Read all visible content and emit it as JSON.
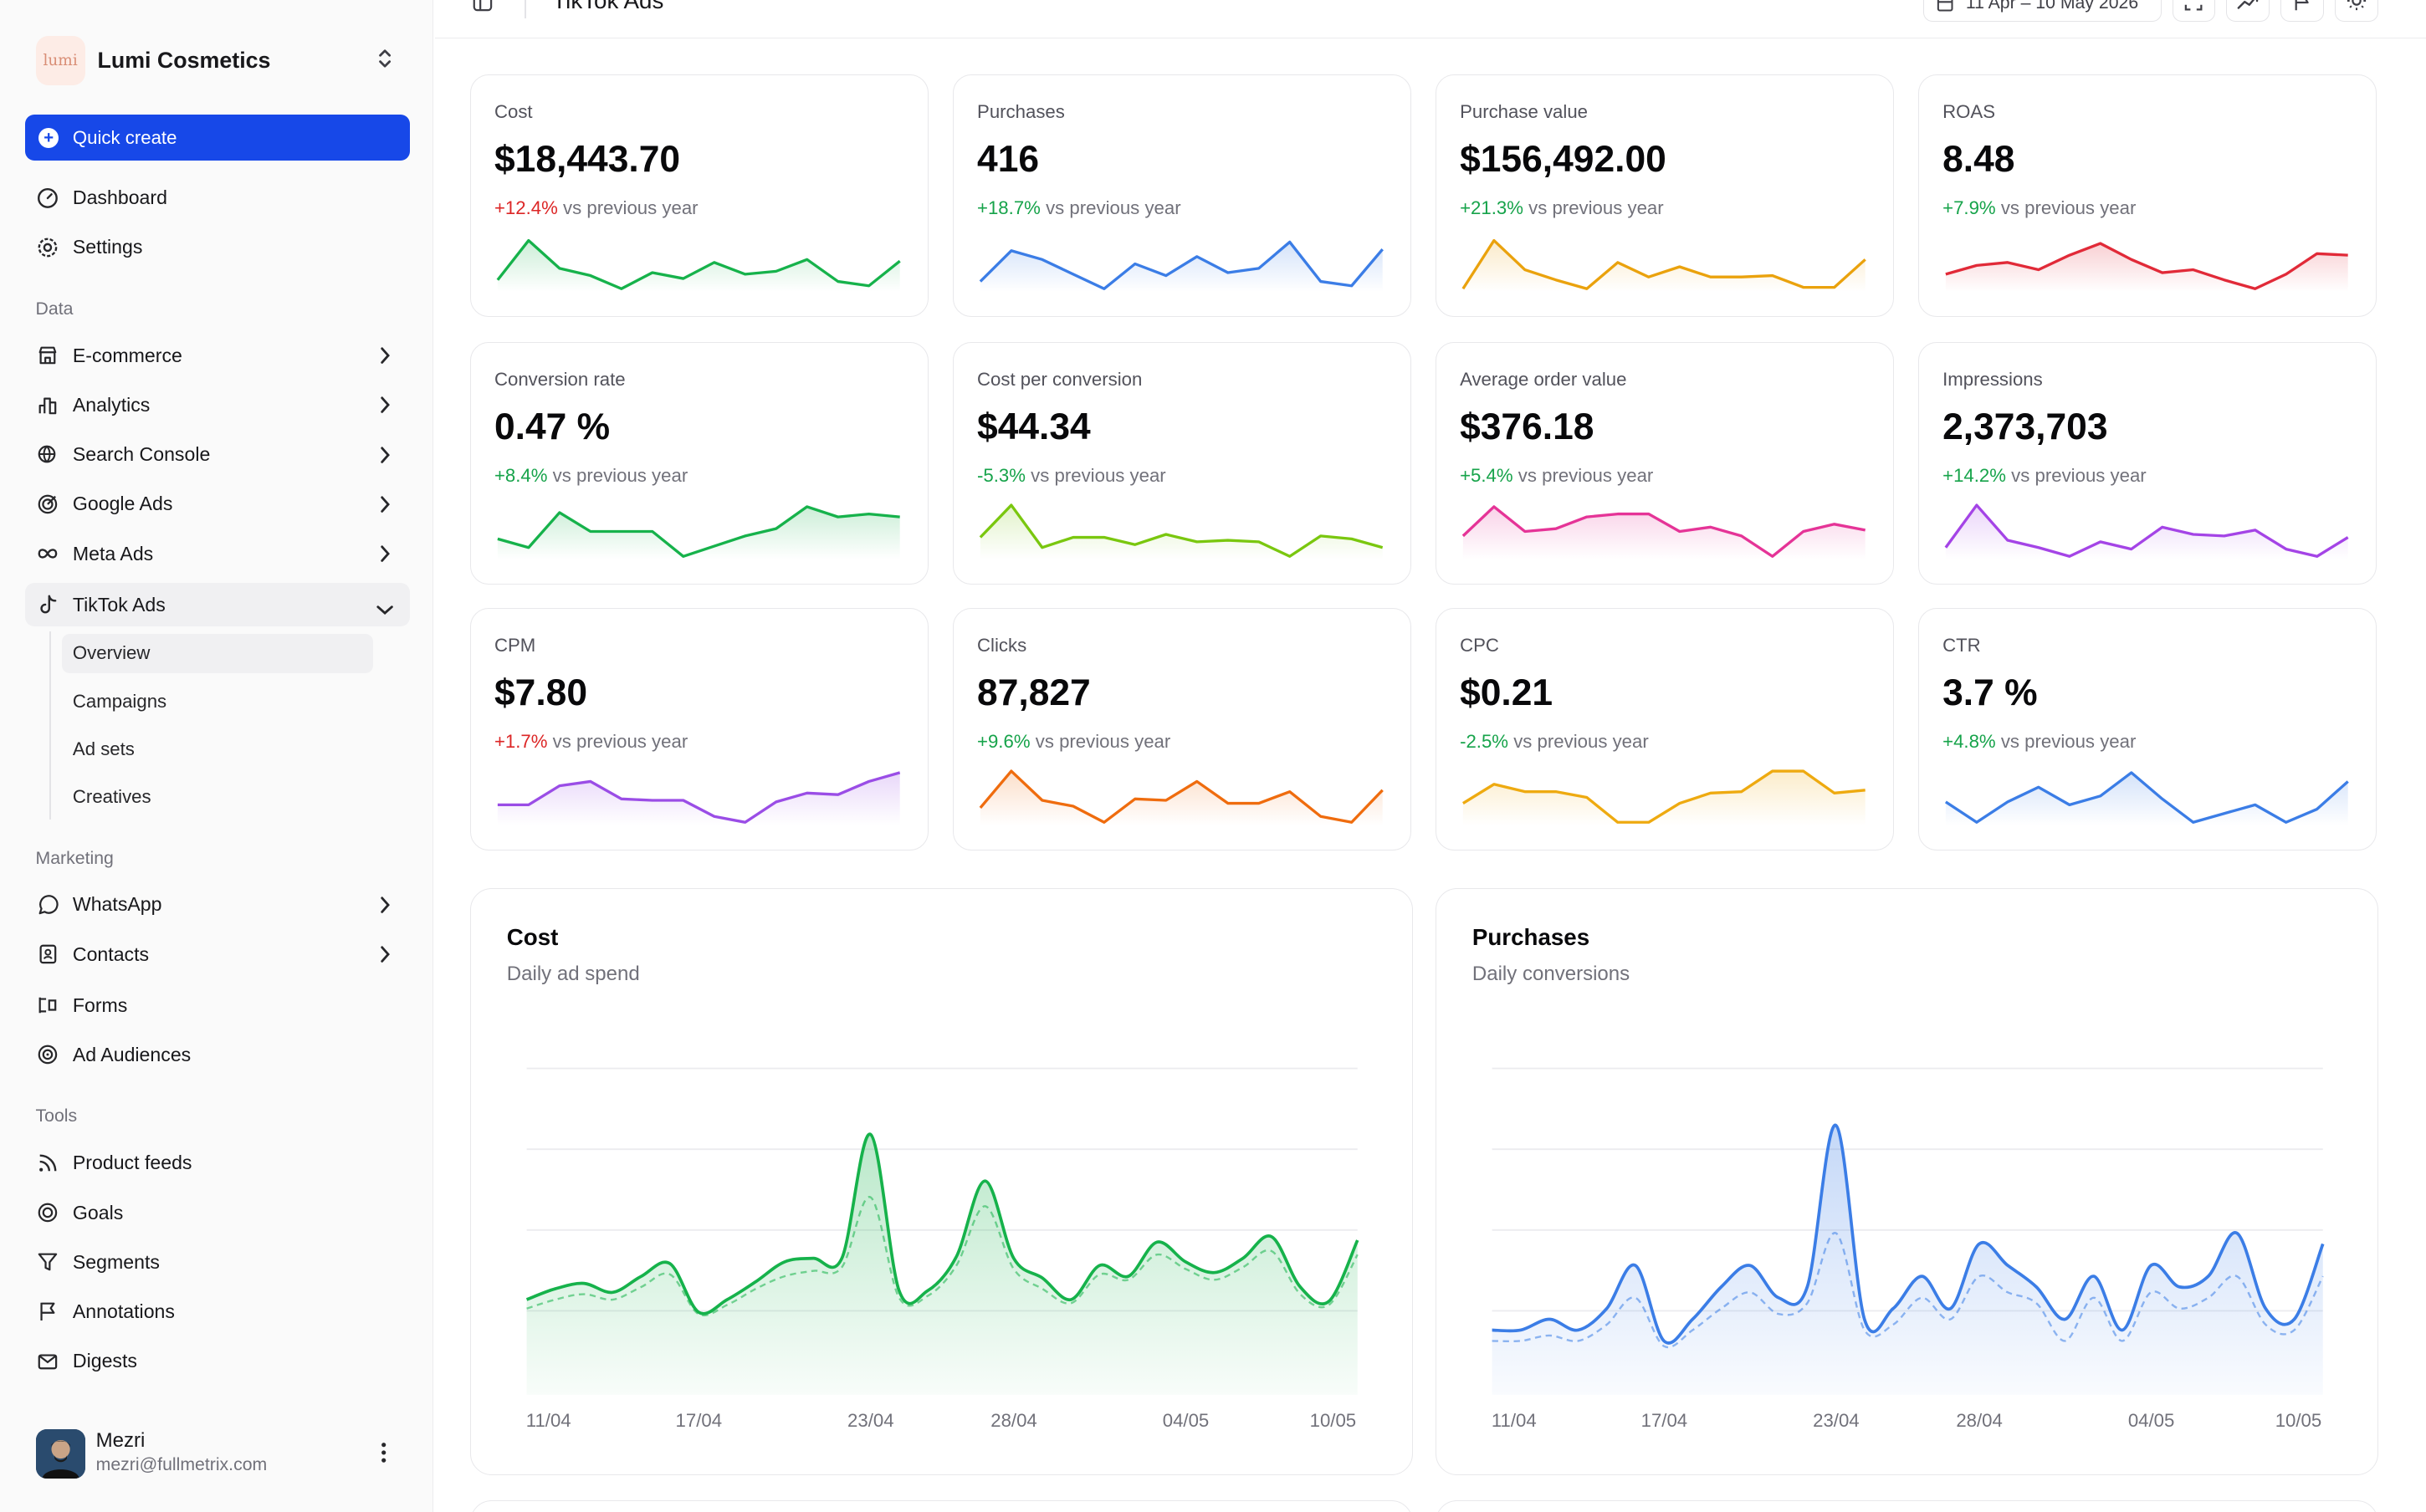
{
  "workspace": {
    "name": "Lumi Cosmetics",
    "logo_text": "lumi"
  },
  "quick_create_label": "Quick create",
  "nav_top": [
    {
      "label": "Dashboard",
      "icon": "dashboard-icon"
    },
    {
      "label": "Settings",
      "icon": "gear-icon"
    }
  ],
  "sections": {
    "data": "Data",
    "marketing": "Marketing",
    "tools": "Tools"
  },
  "nav_data": [
    {
      "label": "E-commerce",
      "icon": "store-icon"
    },
    {
      "label": "Analytics",
      "icon": "bar-chart-icon"
    },
    {
      "label": "Search Console",
      "icon": "globe-search-icon"
    },
    {
      "label": "Google Ads",
      "icon": "target-icon"
    },
    {
      "label": "Meta Ads",
      "icon": "infinity-icon"
    },
    {
      "label": "TikTok Ads",
      "icon": "tiktok-icon"
    }
  ],
  "tiktok_sub": [
    "Overview",
    "Campaigns",
    "Ad sets",
    "Creatives"
  ],
  "nav_marketing": [
    {
      "label": "WhatsApp",
      "icon": "whatsapp-icon"
    },
    {
      "label": "Contacts",
      "icon": "contacts-icon"
    },
    {
      "label": "Forms",
      "icon": "form-icon"
    },
    {
      "label": "Ad Audiences",
      "icon": "audience-target-icon"
    }
  ],
  "nav_tools": [
    {
      "label": "Product feeds",
      "icon": "rss-icon"
    },
    {
      "label": "Goals",
      "icon": "goal-icon"
    },
    {
      "label": "Segments",
      "icon": "funnel-icon"
    },
    {
      "label": "Annotations",
      "icon": "flag-icon"
    },
    {
      "label": "Digests",
      "icon": "mail-icon"
    }
  ],
  "user": {
    "name": "Mezri",
    "email": "mezri@fullmetrix.com"
  },
  "header": {
    "title": "TikTok Ads",
    "date_range": "11 Apr – 10 May 2026"
  },
  "delta_suffix": "vs previous year",
  "kpis": [
    {
      "label": "Cost",
      "value": "$18,443.70",
      "delta": "+12.4%",
      "trend": "neg",
      "color": "#16b24b",
      "points": [
        6,
        33,
        14,
        9,
        0,
        11,
        7,
        18,
        10,
        12,
        20,
        5,
        2,
        19
      ]
    },
    {
      "label": "Purchases",
      "value": "416",
      "delta": "+18.7%",
      "trend": "pos",
      "color": "#3b7de6",
      "points": [
        5,
        26,
        20,
        10,
        0,
        17,
        9,
        22,
        11,
        14,
        32,
        5,
        2,
        27
      ]
    },
    {
      "label": "Purchase value",
      "value": "$156,492.00",
      "delta": "+21.3%",
      "trend": "pos",
      "color": "#eaa20d",
      "points": [
        0,
        33,
        13,
        6,
        0,
        18,
        8,
        15,
        8,
        8,
        9,
        1,
        1,
        20
      ]
    },
    {
      "label": "ROAS",
      "value": "8.48",
      "delta": "+7.9%",
      "trend": "pos",
      "color": "#e12a38",
      "points": [
        10,
        16,
        18,
        13,
        23,
        31,
        20,
        11,
        13,
        6,
        0,
        10,
        24,
        23
      ]
    },
    {
      "label": "Conversion rate",
      "value": "0.47 %",
      "delta": "+8.4%",
      "trend": "pos",
      "color": "#16b24b",
      "points": [
        12,
        6,
        30,
        17,
        17,
        17,
        0,
        7,
        14,
        19,
        34,
        27,
        29,
        27
      ]
    },
    {
      "label": "Cost per conversion",
      "value": "$44.34",
      "delta": "-5.3%",
      "trend": "pos",
      "color": "#7ac70f",
      "points": [
        13,
        35,
        6,
        13,
        13,
        8,
        15,
        10,
        11,
        10,
        0,
        14,
        12,
        6
      ]
    },
    {
      "label": "Average order value",
      "value": "$376.18",
      "delta": "+5.4%",
      "trend": "pos",
      "color": "#e53497",
      "points": [
        14,
        34,
        17,
        19,
        27,
        29,
        29,
        17,
        20,
        14,
        0,
        17,
        22,
        18
      ]
    },
    {
      "label": "Impressions",
      "value": "2,373,703",
      "delta": "+14.2%",
      "trend": "pos",
      "color": "#a444e6",
      "points": [
        6,
        35,
        11,
        6,
        0,
        10,
        5,
        20,
        15,
        14,
        18,
        5,
        0,
        13
      ]
    },
    {
      "label": "CPM",
      "value": "$7.80",
      "delta": "+1.7%",
      "trend": "neg",
      "color": "#9a4de6",
      "points": [
        12,
        12,
        25,
        28,
        16,
        15,
        15,
        4,
        0,
        14,
        20,
        19,
        28,
        34
      ]
    },
    {
      "label": "Clicks",
      "value": "87,827",
      "delta": "+9.6%",
      "trend": "pos",
      "color": "#ef6c0e",
      "points": [
        10,
        35,
        15,
        11,
        0,
        16,
        15,
        28,
        13,
        13,
        21,
        4,
        0,
        22
      ]
    },
    {
      "label": "CPC",
      "value": "$0.21",
      "delta": "-2.5%",
      "trend": "pos",
      "color": "#eeaa10",
      "points": [
        13,
        26,
        21,
        21,
        17,
        0,
        0,
        13,
        20,
        21,
        35,
        35,
        20,
        22
      ]
    },
    {
      "label": "CTR",
      "value": "3.7 %",
      "delta": "+4.8%",
      "trend": "pos",
      "color": "#3b7de6",
      "points": [
        14,
        0,
        14,
        24,
        12,
        18,
        34,
        16,
        0,
        6,
        12,
        0,
        9,
        28
      ]
    }
  ],
  "charts": [
    {
      "title": "Cost",
      "subtitle": "Daily ad spend",
      "chart_data": {
        "type": "area",
        "x": [
          "11/04",
          "12/04",
          "13/04",
          "14/04",
          "15/04",
          "16/04",
          "17/04",
          "18/04",
          "19/04",
          "20/04",
          "21/04",
          "22/04",
          "23/04",
          "24/04",
          "25/04",
          "26/04",
          "27/04",
          "28/04",
          "29/04",
          "30/04",
          "01/05",
          "02/05",
          "03/05",
          "04/05",
          "05/05",
          "06/05",
          "07/05",
          "08/05",
          "09/05",
          "10/05"
        ],
        "x_ticks": [
          "11/04",
          "17/04",
          "23/04",
          "28/04",
          "04/05",
          "10/05"
        ],
        "series": [
          {
            "values": [
              530,
              590,
              620,
              570,
              660,
              730,
              460,
              530,
              630,
              740,
              760,
              760,
              1450,
              580,
              580,
              770,
              1190,
              760,
              650,
              530,
              720,
              660,
              850,
              740,
              680,
              760,
              880,
              600,
              520,
              860
            ]
          },
          {
            "values": [
              480,
              530,
              560,
              530,
              600,
              670,
              450,
              500,
              590,
              660,
              690,
              710,
              1100,
              540,
              550,
              720,
              1050,
              700,
              590,
              510,
              670,
              640,
              780,
              700,
              640,
              710,
              800,
              560,
              500,
              780
            ]
          }
        ],
        "ylim": [
          0,
          1800
        ],
        "color": "#16b24b",
        "grid": true
      }
    },
    {
      "title": "Purchases",
      "subtitle": "Daily conversions",
      "chart_data": {
        "type": "area",
        "x": [
          "11/04",
          "12/04",
          "13/04",
          "14/04",
          "15/04",
          "16/04",
          "17/04",
          "18/04",
          "19/04",
          "20/04",
          "21/04",
          "22/04",
          "23/04",
          "24/04",
          "25/04",
          "26/04",
          "27/04",
          "28/04",
          "29/04",
          "30/04",
          "01/05",
          "02/05",
          "03/05",
          "04/05",
          "05/05",
          "06/05",
          "07/05",
          "08/05",
          "09/05",
          "10/05"
        ],
        "x_ticks": [
          "11/04",
          "17/04",
          "23/04",
          "28/04",
          "04/05",
          "10/05"
        ],
        "series": [
          {
            "values": [
              12,
              12,
              14,
              12,
              16,
              24,
              10,
              14,
              20,
              24,
              18,
              20,
              50,
              14,
              16,
              22,
              16,
              28,
              24,
              20,
              14,
              22,
              12,
              24,
              20,
              22,
              30,
              16,
              14,
              28
            ]
          },
          {
            "values": [
              10,
              10,
              11,
              10,
              13,
              18,
              9,
              12,
              16,
              19,
              15,
              17,
              30,
              12,
              13,
              18,
              14,
              22,
              19,
              17,
              10,
              18,
              10,
              19,
              16,
              18,
              22,
              13,
              12,
              22
            ]
          }
        ],
        "ylim": [
          0,
          60
        ],
        "color": "#3b7de6",
        "grid": true
      }
    }
  ]
}
